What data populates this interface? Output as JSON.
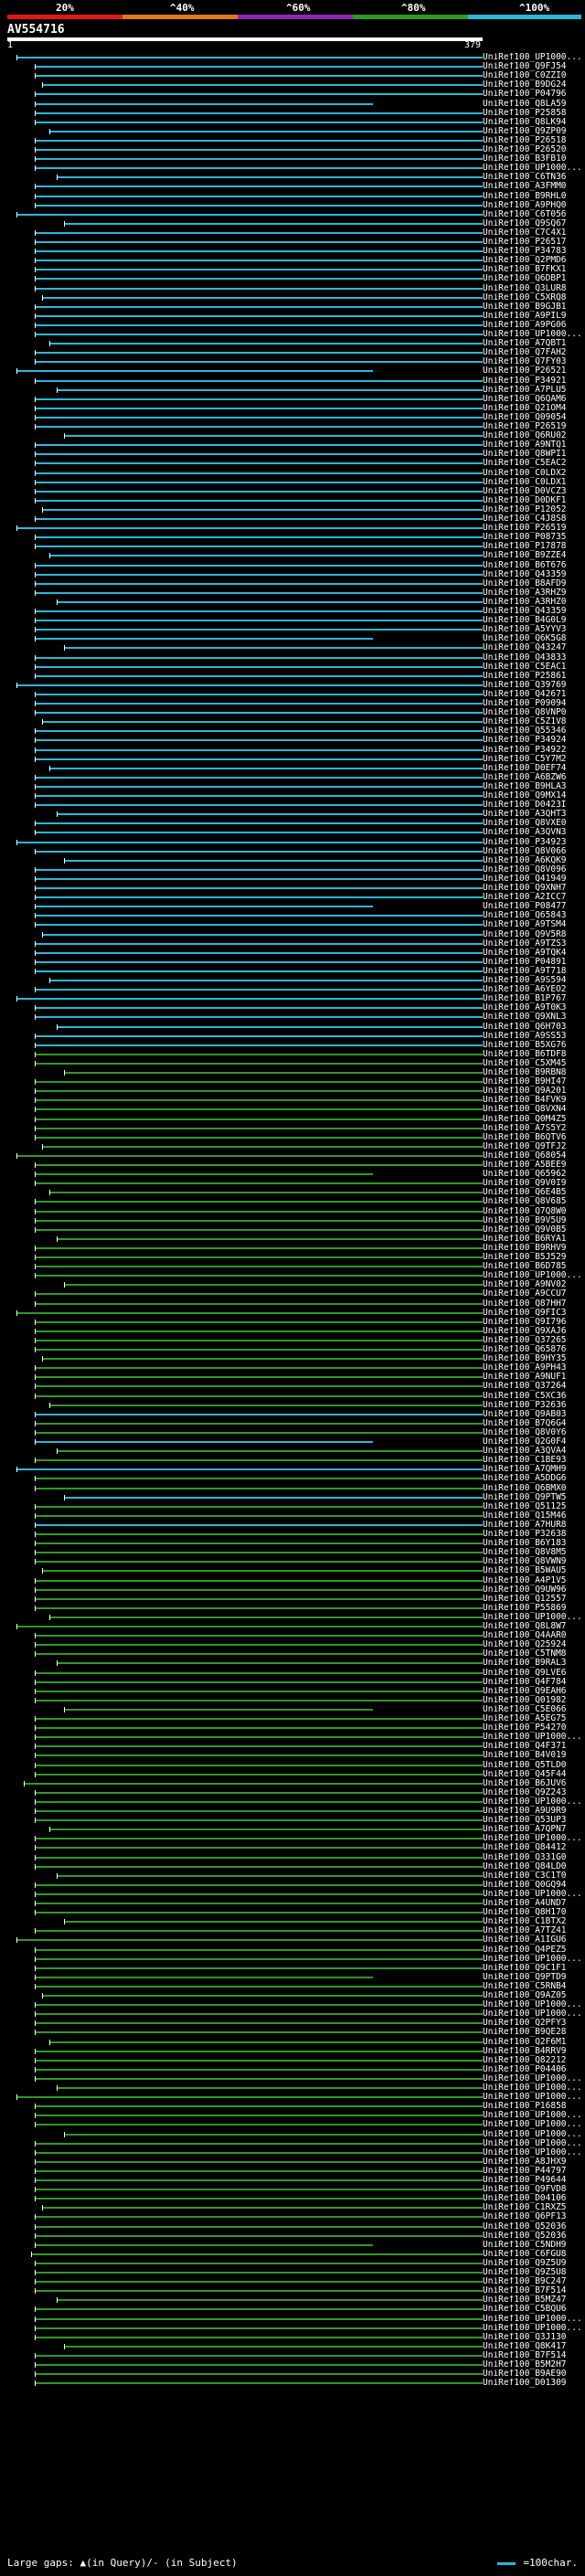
{
  "legend": {
    "ticks": [
      "20%",
      "^40%",
      "^60%",
      "^80%",
      "^100%"
    ],
    "colors": [
      "#e01818",
      "#e07818",
      "#8a2ab4",
      "#2e9a22",
      "#29b7d8"
    ]
  },
  "query": {
    "title": "AV554716",
    "start": "1",
    "end": "379"
  },
  "hits": [
    "UniRef100_UP1000...",
    "UniRef100_Q9FJ54",
    "UniRef100_C0ZZI0",
    "UniRef100_B9DG24",
    "UniRef100_P04796",
    "UniRef100_Q8LA59",
    "UniRef100_P25858",
    "UniRef100_Q8LK94",
    "UniRef100_Q9ZP09",
    "UniRef100_P26518",
    "UniRef100_P26520",
    "UniRef100_B3FB10",
    "UniRef100_UP1000...",
    "UniRef100_C6TN36",
    "UniRef100_A3FMM0",
    "UniRef100_B9RHL0",
    "UniRef100_A9PHQ0",
    "UniRef100_C6T056",
    "UniRef100_Q9SQ67",
    "UniRef100_C7C4X1",
    "UniRef100_P26517",
    "UniRef100_P34783",
    "UniRef100_Q2PMD6",
    "UniRef100_B7FKX1",
    "UniRef100_Q6DBP1",
    "UniRef100_Q3LUR8",
    "UniRef100_C5XRQ8",
    "UniRef100_B9GJB1",
    "UniRef100_A9PIL9",
    "UniRef100_A9PG06",
    "UniRef100_UP1000...",
    "UniRef100_A7QBT1",
    "UniRef100_Q7FAH2",
    "UniRef100_Q7FY03",
    "UniRef100_P26521",
    "UniRef100_P34921",
    "UniRef100_A7PLU5",
    "UniRef100_Q6QAM6",
    "UniRef100_Q21OM4",
    "UniRef100_Q09054",
    "UniRef100_P26519",
    "UniRef100_Q6RU02",
    "UniRef100_A9NTQ1",
    "UniRef100_Q8WPI1",
    "UniRef100_C5EAC2",
    "UniRef100_C0LDX2",
    "UniRef100_C0LDX1",
    "UniRef100_D0VCZ3",
    "UniRef100_D0DKF1",
    "UniRef100_P12052",
    "UniRef100_C4J8S8",
    "UniRef100_P26519",
    "UniRef100_P08735",
    "UniRef100_P17878",
    "UniRef100_B9ZZE4",
    "UniRef100_B6T676",
    "UniRef100_Q43359",
    "UniRef100_B8AFD9",
    "UniRef100_A3RHZ9",
    "UniRef100_A3RHZ0",
    "UniRef100_Q43359",
    "UniRef100_B4G0L9",
    "UniRef100_A5YYV3",
    "UniRef100_Q6K5G8",
    "UniRef100_Q43247",
    "UniRef100_Q43833",
    "UniRef100_C5EAC1",
    "UniRef100_P25861",
    "UniRef100_Q39769",
    "UniRef100_Q42671",
    "UniRef100_P09094",
    "UniRef100_Q8VNP0",
    "UniRef100_C5Z1V8",
    "UniRef100_Q55346",
    "UniRef100_P34924",
    "UniRef100_P34922",
    "UniRef100_C5Y7M2",
    "UniRef100_D0EF74",
    "UniRef100_A6BZW6",
    "UniRef100_B9HLA3",
    "UniRef100_Q9MX14",
    "UniRef100_D0423I",
    "UniRef100_A3QHT3",
    "UniRef100_Q8VXE0",
    "UniRef100_A3QVN3",
    "UniRef100_P34923",
    "UniRef100_Q8V066",
    "UniRef100_A6KQK9",
    "UniRef100_Q8V096",
    "UniRef100_Q41949",
    "UniRef100_Q9XNH7",
    "UniRef100_A2ICC7",
    "UniRef100_P08477",
    "UniRef100_Q65843",
    "UniRef100_A9TSM4",
    "UniRef100_Q9V5R8",
    "UniRef100_A9TZS3",
    "UniRef100_A9TQK4",
    "UniRef100_P04891",
    "UniRef100_A9T718",
    "UniRef100_A9S594",
    "UniRef100_A6YEO2",
    "UniRef100_B1P767",
    "UniRef100_A9T0K3",
    "UniRef100_Q9XNL3",
    "UniRef100_Q6H703",
    "UniRef100_A9SS53",
    "UniRef100_B5XG76",
    "UniRef100_B6TDF8",
    "UniRef100_C5XM45",
    "UniRef100_B9RBN8",
    "UniRef100_B9HI47",
    "UniRef100_Q9A201",
    "UniRef100_B4FVK9",
    "UniRef100_Q8VXN4",
    "UniRef100_Q0M4Z5",
    "UniRef100_A7S5Y2",
    "UniRef100_B6QTV6",
    "UniRef100_Q9TFJ2",
    "UniRef100_Q68054",
    "UniRef100_A5BEE9",
    "UniRef100_Q65962",
    "UniRef100_Q9V0I9",
    "UniRef100_Q6E4B5",
    "UniRef100_Q8V685",
    "UniRef100_Q7Q8W0",
    "UniRef100_B9V5U9",
    "UniRef100_Q9V0B5",
    "UniRef100_B6RYA1",
    "UniRef100_B9RHV9",
    "UniRef100_B5J529",
    "UniRef100_B6D785",
    "UniRef100_UP1000...",
    "UniRef100_A9NV02",
    "UniRef100_A9CCU7",
    "UniRef100_Q87HH7",
    "UniRef100_Q9FIC3",
    "UniRef100_Q9I796",
    "UniRef100_Q9XAJ6",
    "UniRef100_Q37265",
    "UniRef100_Q65876",
    "UniRef100_B9HY35",
    "UniRef100_A9PH43",
    "UniRef100_A9NUF1",
    "UniRef100_Q37264",
    "UniRef100_C5XC36",
    "UniRef100_P32636",
    "UniRef100_Q9AB03",
    "UniRef100_B7Q6G4",
    "UniRef100_Q8V0Y6",
    "UniRef100_Q2G0F4",
    "UniRef100_A3QVA4",
    "UniRef100_C1BE93",
    "UniRef100_A7QMH9",
    "UniRef100_A5DDG6",
    "UniRef100_Q6BMX0",
    "UniRef100_Q9PTW5",
    "UniRef100_Q51125",
    "UniRef100_Q15M46",
    "UniRef100_A7HUR8",
    "UniRef100_P32638",
    "UniRef100_B6Y183",
    "UniRef100_Q8V8M5",
    "UniRef100_Q8VWN9",
    "UniRef100_B5WAU5",
    "UniRef100_A4P1V5",
    "UniRef100_Q9UW96",
    "UniRef100_Q12557",
    "UniRef100_P55869",
    "UniRef100_UP1000...",
    "UniRef100_Q8L8W7",
    "UniRef100_Q4AAR0",
    "UniRef100_Q25924",
    "UniRef100_C5TNM8",
    "UniRef100_B9RAL3",
    "UniRef100_Q9LVE6",
    "UniRef100_Q4F784",
    "UniRef100_Q9EAH6",
    "UniRef100_Q01982",
    "UniRef100_C5E066",
    "UniRef100_A5EG75",
    "UniRef100_P54270",
    "UniRef100_UP1000...",
    "UniRef100_Q4F371",
    "UniRef100_B4V019",
    "UniRef100_Q5TLD0",
    "UniRef100_Q45F44",
    "UniRef100_B6JUV6",
    "UniRef100_Q9Z243",
    "UniRef100_UP1000...",
    "UniRef100_A9U9R9",
    "UniRef100_Q53UP3",
    "UniRef100_A7QPN7",
    "UniRef100_UP1000...",
    "UniRef100_Q84412",
    "UniRef100_Q331G0",
    "UniRef100_Q84LD0",
    "UniRef100_C3C1T0",
    "UniRef100_Q0GQ94",
    "UniRef100_UP1000...",
    "UniRef100_A4UND7",
    "UniRef100_Q8H170",
    "UniRef100_C1BTX2",
    "UniRef100_A7TZ41",
    "UniRef100_A1IGU6",
    "UniRef100_Q4PEZ5",
    "UniRef100_UP1000...",
    "UniRef100_Q9C1F1",
    "UniRef100_Q9PTD9",
    "UniRef100_C5RNB4",
    "UniRef100_Q9AZ05",
    "UniRef100_UP1000...",
    "UniRef100_UP1000...",
    "UniRef100_Q2PFY3",
    "UniRef100_B9QE28",
    "UniRef100_Q2F6M1",
    "UniRef100_B4RRV9",
    "UniRef100_Q82212",
    "UniRef100_P04406",
    "UniRef100_UP1000...",
    "UniRef100_UP1000...",
    "UniRef100_UP1000...",
    "UniRef100_P16858",
    "UniRef100_UP1000...",
    "UniRef100_UP1000...",
    "UniRef100_UP1000...",
    "UniRef100_UP1000...",
    "UniRef100_UP1000...",
    "UniRef100_A8JHX9",
    "UniRef100_P44797",
    "UniRef100_P49644",
    "UniRef100_Q9FVD8",
    "UniRef100_D04106",
    "UniRef100_C1RXZ5",
    "UniRef100_Q6PF13",
    "UniRef100_Q52036",
    "UniRef100_Q52036",
    "UniRef100_C5NDH9",
    "UniRef100_C6FGU8",
    "UniRef100_Q9Z5U9",
    "UniRef100_Q9Z5U8",
    "UniRef100_B9C247",
    "UniRef100_B7F514",
    "UniRef100_B5MZ47",
    "UniRef100_C5BQU6",
    "UniRef100_UP1000...",
    "UniRef100_UP1000...",
    "UniRef100_Q3J130",
    "UniRef100_Q8K417",
    "UniRef100_B7F514",
    "UniRef100_B5M2H7",
    "UniRef100_B9AE90",
    "UniRef100_D01309"
  ],
  "footer": {
    "left": "Large gaps: ▲(in Query)/- (in Subject)",
    "scale": "=100char."
  }
}
